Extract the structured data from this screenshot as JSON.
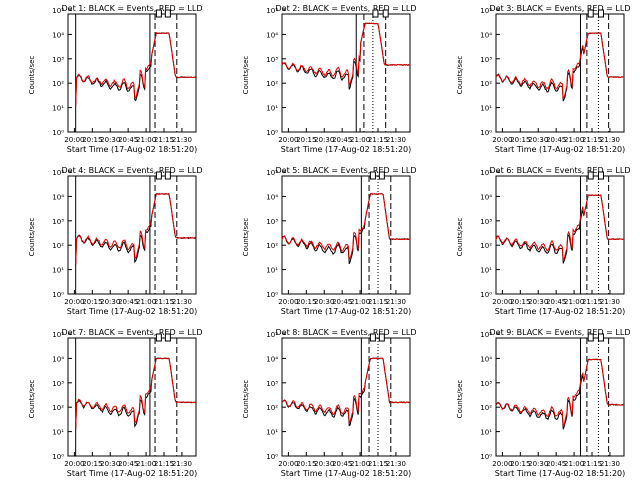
{
  "chart_data": {
    "type": "line",
    "layout": "3x3 grid",
    "xlabel": "Start Time (17-Aug-02 18:51:20)",
    "ylabel": "Counts/sec",
    "y_scale": "log",
    "ylim": [
      1,
      100000
    ],
    "xlim": [
      0,
      100
    ],
    "x_tick_labels": [
      "20:00",
      "20:15",
      "20:30",
      "20:45",
      "21:00",
      "21:15",
      "21:30"
    ],
    "y_tick_labels": [
      "10⁰",
      "10¹",
      "10²",
      "10³",
      "10⁴",
      "10⁵"
    ],
    "series_legend": {
      "black": "Events",
      "red": "LLD"
    },
    "series_colors": {
      "black": "#000000",
      "red": "#e00000"
    },
    "panels": [
      {
        "title": "Det 1: BLACK = Events, RED = LLD",
        "solid": [
          6,
          64
        ],
        "dashed": [
          68,
          85
        ],
        "dotted": [],
        "markers": [
          71,
          78
        ],
        "base": 2.25,
        "peak": 4.05,
        "shift": 0,
        "low": [
          1.1,
          1.9
        ]
      },
      {
        "title": "Det 2: BLACK = Events, RED = LLD",
        "solid": [
          58
        ],
        "dashed": [
          64,
          81
        ],
        "dotted": [
          71
        ],
        "markers": [
          73,
          81
        ],
        "base": 2.75,
        "peak": 4.45,
        "shift": 0,
        "low": [
          2.72,
          2.75
        ]
      },
      {
        "title": "Det 3: BLACK = Events, RED = LLD",
        "solid": [
          66
        ],
        "dashed": [
          71,
          88
        ],
        "dotted": [
          80
        ],
        "markers": [
          74,
          82
        ],
        "base": 2.25,
        "peak": 4.05,
        "shift": 0,
        "low": [
          1.1,
          1.9
        ]
      },
      {
        "title": "Det 4: BLACK = Events, RED = LLD",
        "solid": [
          6,
          64
        ],
        "dashed": [
          68,
          85
        ],
        "dotted": [],
        "markers": [
          71,
          78
        ],
        "base": 2.3,
        "peak": 4.1,
        "shift": 0,
        "low": [
          1.2,
          1.9
        ]
      },
      {
        "title": "Det 5: BLACK = Events, RED = LLD",
        "solid": [
          62
        ],
        "dashed": [
          68,
          85
        ],
        "dotted": [
          75
        ],
        "markers": [
          71,
          78
        ],
        "base": 2.25,
        "peak": 4.1,
        "shift": 0,
        "low": [
          1.2,
          1.9
        ]
      },
      {
        "title": "Det 6: BLACK = Events, RED = LLD",
        "solid": [
          66
        ],
        "dashed": [
          71,
          88
        ],
        "dotted": [
          80
        ],
        "markers": [
          74,
          82
        ],
        "base": 2.25,
        "peak": 4.05,
        "shift": 0,
        "low": [
          1.2,
          1.9
        ]
      },
      {
        "title": "Det 7: BLACK = Events, RED = LLD",
        "solid": [
          6,
          64
        ],
        "dashed": [
          68,
          85
        ],
        "dotted": [],
        "markers": [
          71,
          78
        ],
        "base": 2.2,
        "peak": 4.0,
        "shift": 0,
        "low": [
          1.1,
          1.8
        ]
      },
      {
        "title": "Det 8: BLACK = Events, RED = LLD",
        "solid": [
          62
        ],
        "dashed": [
          68,
          85
        ],
        "dotted": [
          75
        ],
        "markers": [
          71,
          78
        ],
        "base": 2.2,
        "peak": 4.0,
        "shift": 0,
        "low": [
          1.1,
          1.8
        ]
      },
      {
        "title": "Det 9: BLACK = Events, RED = LLD",
        "solid": [
          66
        ],
        "dashed": [
          71,
          88
        ],
        "dotted": [
          80
        ],
        "markers": [
          74,
          82
        ],
        "base": 2.1,
        "peak": 3.95,
        "shift": 0,
        "low": [
          0.3,
          1.6
        ]
      }
    ]
  }
}
